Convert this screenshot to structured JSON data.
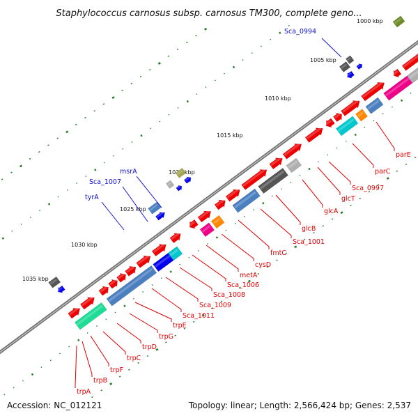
{
  "title": "Staphylococcus carnosus subsp. carnosus TM300, complete geno...",
  "footer": {
    "accession": "Accession: NC_012121",
    "summary": "Topology: linear; Length: 2,566,424 bp; Genes: 2,537"
  },
  "scale_labels": [
    "1000 kbp",
    "1005 kbp",
    "1010 kbp",
    "1015 kbp",
    "1020 kbp",
    "1025 kbp",
    "1030 kbp",
    "1035 kbp"
  ],
  "colors": {
    "backbone": "#8a8a8a",
    "red_genes": "#ee0000",
    "upper_labels": "#1010cc",
    "lower_labels": "#dd0000",
    "tick_dots": "#2e7d2e"
  },
  "upper_labels": [
    "Sca_0994",
    "msrA",
    "Sca_1007",
    "tyrA"
  ],
  "lower_labels": [
    "parE",
    "parC",
    "Sca_0997",
    "glcT",
    "glcA",
    "glcB",
    "Sca_1001",
    "fmtC",
    "cysD",
    "metA",
    "Sca_1006",
    "Sca_1008",
    "Sca_1009",
    "Sca_1011",
    "trpE",
    "trpG",
    "trpD",
    "trpC",
    "trpF",
    "trpB",
    "trpA"
  ]
}
